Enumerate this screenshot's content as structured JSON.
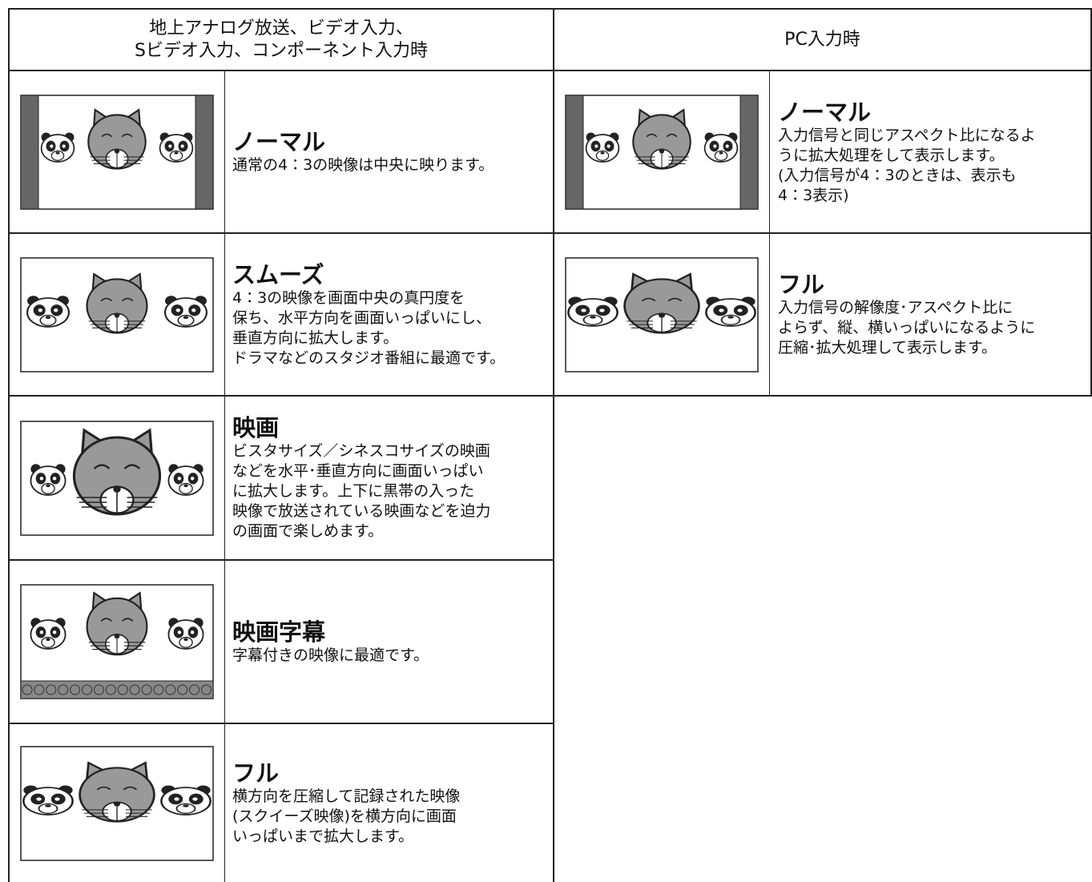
{
  "header": {
    "left": [
      "地上アナログ放送、ビデオ入力、",
      "Sビデオ入力、コンポーネント入力時"
    ],
    "right": "PC入力時"
  },
  "left_rows": [
    {
      "title": "ノーマル",
      "lines": [
        "通常の4：3の映像は中央に映ります。"
      ]
    },
    {
      "title": "スムーズ",
      "lines": [
        "4：3の映像を画面中央の真円度を",
        "保ち、水平方向を画面いっぱいにし、",
        "垂直方向に拡大します。",
        "ドラマなどのスタジオ番組に最適です。"
      ]
    },
    {
      "title": "映画",
      "lines": [
        "ビスタサイズ／シネスコサイズの映画",
        "などを水平･垂直方向に画面いっぱい",
        "に拡大します。上下に黒帯の入った",
        "映像で放送されている映画などを迫力",
        "の画面で楽しめます。"
      ]
    },
    {
      "title": "映画字幕",
      "lines": [
        "字幕付きの映像に最適です。"
      ]
    },
    {
      "title": "フル",
      "lines": [
        "横方向を圧縮して記録された映像",
        "(スクイーズ映像)を横方向に画面",
        "いっぱいまで拡大します。"
      ]
    }
  ],
  "right_rows": [
    {
      "title": "ノーマル",
      "lines": [
        "入力信号と同じアスペクト比になるよ",
        "うに拡大処理をして表示します。",
        "(入力信号が4：3のときは、表示も",
        "4：3表示)"
      ]
    },
    {
      "title": "フル",
      "lines": [
        "入力信号の解像度･アスペクト比に",
        "よらず、縦、横いっぱいになるように",
        "圧縮･拡大処理して表示します。"
      ]
    }
  ]
}
